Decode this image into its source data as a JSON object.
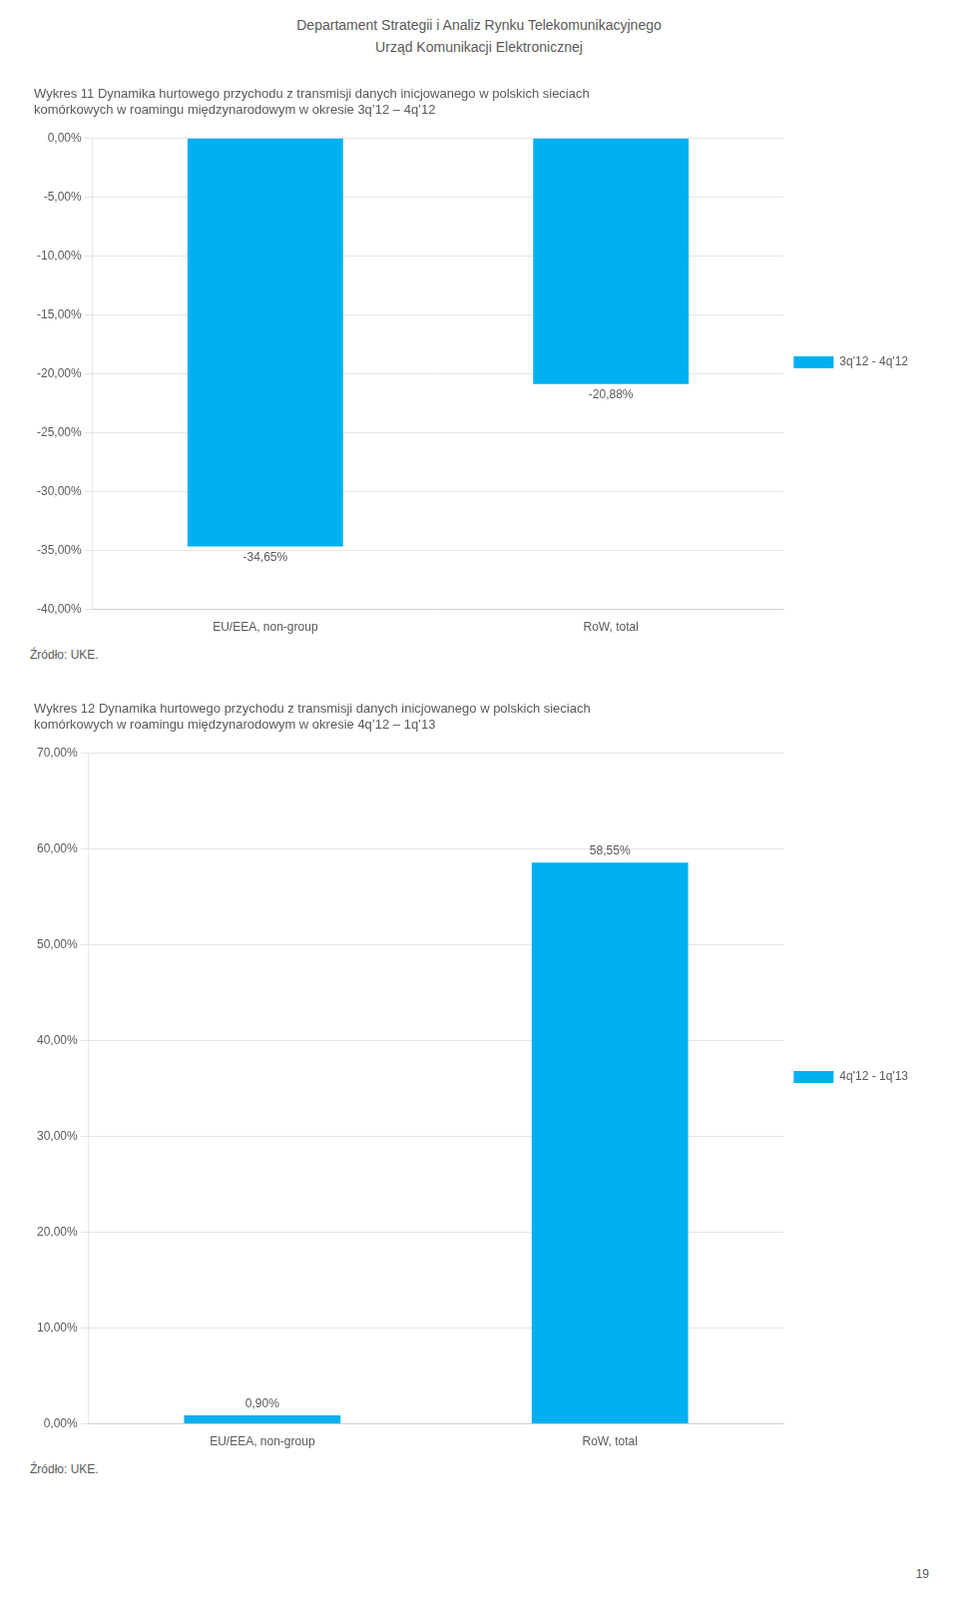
{
  "header": [
    "Departament Strategii i Analiz Rynku Telekomunikacyjnego",
    "Urząd Komunikacji Elektronicznej"
  ],
  "page_number": "19",
  "chart_data": [
    {
      "type": "bar",
      "title": "Wykres 11 Dynamika hurtowego przychodu z transmisji danych inicjowanego w polskich sieciach\nkomórkowych w roamingu międzynarodowym w okresie 3q’12 – 4q’12",
      "categories": [
        "EU/EEA, non-group",
        "RoW, total"
      ],
      "series": [
        {
          "name": "3q'12 - 4q'12",
          "color": "#00B0F0",
          "values": [
            -34.65,
            -20.88
          ],
          "value_labels": [
            "-34,65%",
            "-20,88%"
          ]
        }
      ],
      "ylim": [
        -40,
        0
      ],
      "yticks": [
        {
          "value": 0,
          "label": "0,00%"
        },
        {
          "value": -5,
          "label": "-5,00%"
        },
        {
          "value": -10,
          "label": "-10,00%"
        },
        {
          "value": -15,
          "label": "-15,00%"
        },
        {
          "value": -20,
          "label": "-20,00%"
        },
        {
          "value": -25,
          "label": "-25,00%"
        },
        {
          "value": -30,
          "label": "-30,00%"
        },
        {
          "value": -35,
          "label": "-35,00%"
        },
        {
          "value": -40,
          "label": "-40,00%"
        }
      ],
      "grid": true,
      "legend": "right",
      "data_labels": true,
      "annotations": [
        "Źródło: UKE."
      ]
    },
    {
      "type": "bar",
      "title": "Wykres 12 Dynamika hurtowego przychodu z transmisji danych inicjowanego w polskich sieciach\nkomórkowych w roamingu międzynarodowym w okresie 4q’12 – 1q’13",
      "categories": [
        "EU/EEA, non-group",
        "RoW, total"
      ],
      "series": [
        {
          "name": "4q'12 - 1q'13",
          "color": "#00B0F0",
          "values": [
            0.9,
            58.55
          ],
          "value_labels": [
            "0,90%",
            "58,55%"
          ]
        }
      ],
      "ylim": [
        0,
        70
      ],
      "yticks": [
        {
          "value": 0,
          "label": "0,00%"
        },
        {
          "value": 10,
          "label": "10,00%"
        },
        {
          "value": 20,
          "label": "20,00%"
        },
        {
          "value": 30,
          "label": "30,00%"
        },
        {
          "value": 40,
          "label": "40,00%"
        },
        {
          "value": 50,
          "label": "50,00%"
        },
        {
          "value": 60,
          "label": "60,00%"
        },
        {
          "value": 70,
          "label": "70,00%"
        }
      ],
      "grid": true,
      "legend": "right",
      "data_labels": true,
      "annotations": [
        "Źródło: UKE."
      ]
    }
  ]
}
